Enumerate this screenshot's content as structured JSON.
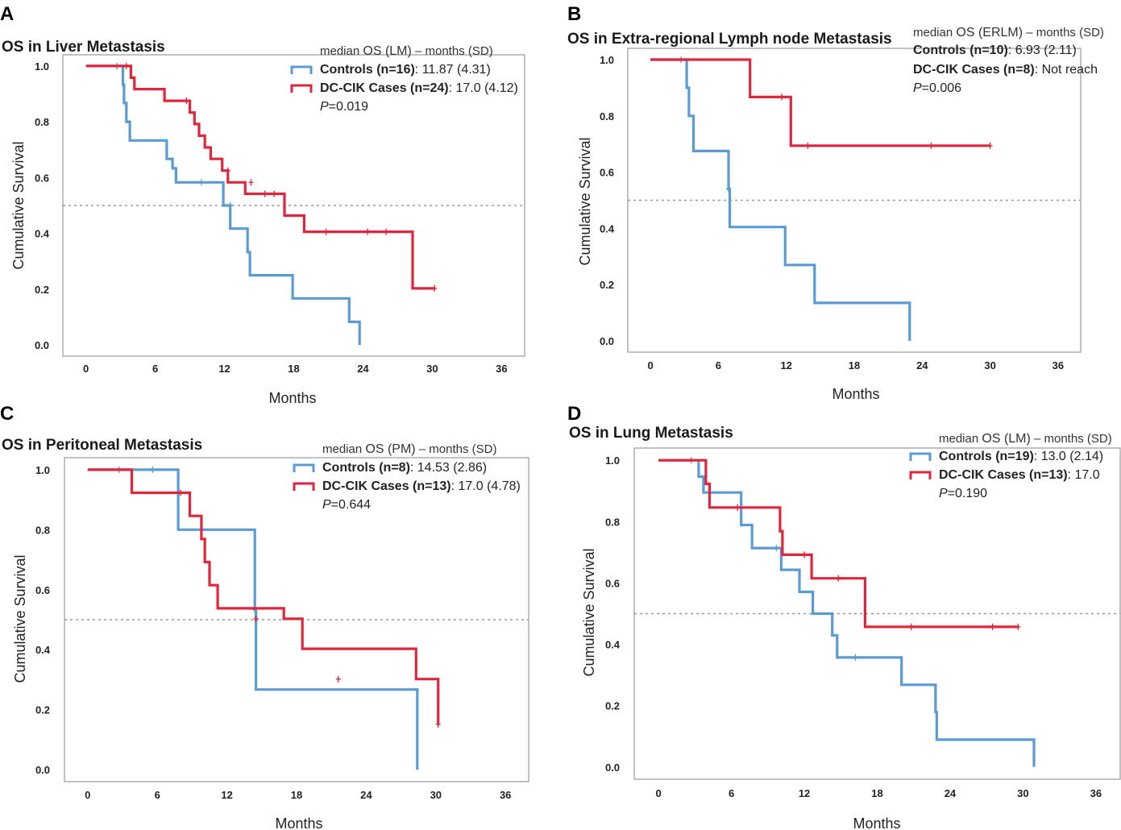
{
  "colors": {
    "controls": "#5b9bd5",
    "cases": "#e0263c"
  },
  "chart_data": [
    {
      "type": "line",
      "panel_label": "A",
      "title": "OS in Liver Metastasis",
      "xlabel": "Months",
      "ylabel": "Cumulative Survival",
      "x_ticks": [
        "0",
        "6",
        "12",
        "18",
        "24",
        "30",
        "36"
      ],
      "y_ticks": [
        "0.0",
        "0.2",
        "0.4",
        "0.6",
        "0.8",
        "1.0"
      ],
      "xlim": [
        -2,
        38
      ],
      "ylim": [
        -0.04,
        1.04
      ],
      "median_ref": 0.5,
      "legend": {
        "heading_pre": "median ",
        "heading_os": "OS (LM)",
        "heading_post": " – months (SD)",
        "controls_name": "Controls (n=16)",
        "controls_value": ": 11.87 (4.31)",
        "cases_name": "DC-CIK Cases (n=24)",
        "cases_value": ": 17.0 (4.12)",
        "p_label": "P",
        "p_value": "=0.019"
      },
      "series": [
        {
          "name": "Controls",
          "color_key": "controls",
          "x": [
            0,
            3.2,
            3.3,
            3.5,
            3.8,
            7.0,
            7.5,
            7.8,
            11.9,
            12.5,
            14.0,
            14.2,
            17.9,
            22.8,
            23.7,
            23.7
          ],
          "y": [
            1.0,
            0.933,
            0.867,
            0.8,
            0.733,
            0.667,
            0.633,
            0.583,
            0.5,
            0.417,
            0.333,
            0.25,
            0.167,
            0.083,
            0.0,
            0.0
          ],
          "censor_x": [
            2.7,
            10.0,
            12.5
          ],
          "censor_y": [
            1.0,
            0.583,
            0.5
          ]
        },
        {
          "name": "DC-CIK Cases",
          "color_key": "cases",
          "x": [
            0,
            3.9,
            4.2,
            6.8,
            9.0,
            9.4,
            9.8,
            10.3,
            10.8,
            11.8,
            12.3,
            12.4,
            13.8,
            16.0,
            17.2,
            18.9,
            28.3,
            30.2
          ],
          "y": [
            1.0,
            0.958,
            0.917,
            0.875,
            0.833,
            0.792,
            0.75,
            0.708,
            0.667,
            0.625,
            0.583,
            0.583,
            0.542,
            0.542,
            0.464,
            0.406,
            0.203,
            0.203
          ],
          "censor_x": [
            3.5,
            8.7,
            12.3,
            14.3,
            15.5,
            16.3,
            20.8,
            24.4,
            26.0,
            30.2
          ],
          "censor_y": [
            1.0,
            0.875,
            0.625,
            0.583,
            0.542,
            0.542,
            0.406,
            0.406,
            0.406,
            0.203
          ]
        }
      ]
    },
    {
      "type": "line",
      "panel_label": "B",
      "title": "OS in Extra-regional Lymph node Metastasis",
      "xlabel": "Months",
      "ylabel": "Cumulative Survival",
      "x_ticks": [
        "0",
        "6",
        "12",
        "18",
        "24",
        "30",
        "36"
      ],
      "y_ticks": [
        "0.0",
        "0.2",
        "0.4",
        "0.6",
        "0.8",
        "1.0"
      ],
      "xlim": [
        -2,
        38
      ],
      "ylim": [
        -0.04,
        1.04
      ],
      "median_ref": 0.5,
      "legend": {
        "heading_pre": "median ",
        "heading_os": "OS (ERLM)",
        "heading_post": " – months (SD)",
        "controls_name": "Controls (n=10)",
        "controls_value": ": 6.93 (2.11)",
        "cases_name": "DC-CIK Cases (n=8)",
        "cases_value": ": Not reach",
        "p_label": "P",
        "p_value": "=0.006"
      },
      "series": [
        {
          "name": "Controls",
          "color_key": "controls",
          "x": [
            0,
            3.2,
            3.4,
            3.8,
            6.9,
            7.0,
            11.9,
            14.5,
            22.9,
            22.9
          ],
          "y": [
            1.0,
            0.9,
            0.8,
            0.675,
            0.54,
            0.405,
            0.27,
            0.135,
            0.0,
            0.0
          ],
          "censor_x": [
            2.7,
            6.9
          ],
          "censor_y": [
            1.0,
            0.54
          ]
        },
        {
          "name": "DC-CIK Cases",
          "color_key": "cases",
          "x": [
            0,
            8.8,
            12.4,
            30.0
          ],
          "y": [
            1.0,
            0.867,
            0.694,
            0.694
          ],
          "censor_x": [
            11.6,
            13.9,
            24.8,
            30.0
          ],
          "censor_y": [
            0.867,
            0.694,
            0.694,
            0.694
          ]
        }
      ]
    },
    {
      "type": "line",
      "panel_label": "C",
      "title": "OS in Peritoneal Metastasis",
      "xlabel": "Months",
      "ylabel": "Cumulative Survival",
      "x_ticks": [
        "0",
        "6",
        "12",
        "18",
        "24",
        "30",
        "36"
      ],
      "y_ticks": [
        "0.0",
        "0.2",
        "0.4",
        "0.6",
        "0.8",
        "1.0"
      ],
      "xlim": [
        -2,
        38
      ],
      "ylim": [
        -0.04,
        1.04
      ],
      "median_ref": 0.5,
      "legend": {
        "heading_pre": "median ",
        "heading_os": "OS (PM)",
        "heading_post": " – months (SD)",
        "controls_name": "Controls (n=8)",
        "controls_value": ": 14.53 (2.86)",
        "cases_name": "DC-CIK Cases (n=13)",
        "cases_value": ": 17.0 (4.78)",
        "p_label": "P",
        "p_value": "=0.644"
      },
      "series": [
        {
          "name": "Controls",
          "color_key": "controls",
          "x": [
            0,
            7.8,
            14.4,
            14.5,
            28.4,
            28.4
          ],
          "y": [
            1.0,
            0.8,
            0.533,
            0.267,
            0.0,
            0.0
          ],
          "censor_x": [
            2.7,
            5.6,
            14.4
          ],
          "censor_y": [
            1.0,
            1.0,
            0.533
          ]
        },
        {
          "name": "DC-CIK Cases",
          "color_key": "cases",
          "x": [
            0,
            3.8,
            8.8,
            9.8,
            10.1,
            10.5,
            11.2,
            12.2,
            16.9,
            18.5,
            28.3,
            30.2
          ],
          "y": [
            1.0,
            0.923,
            0.846,
            0.769,
            0.692,
            0.615,
            0.538,
            0.538,
            0.503,
            0.403,
            0.302,
            0.151
          ],
          "censor_x": [
            8.0,
            14.5,
            21.6,
            30.2
          ],
          "censor_y": [
            0.923,
            0.503,
            0.302,
            0.151
          ]
        }
      ]
    },
    {
      "type": "line",
      "panel_label": "D",
      "title": "OS in Lung Metastasis",
      "xlabel": "Months",
      "ylabel": "Cumulative Survival",
      "x_ticks": [
        "0",
        "6",
        "12",
        "18",
        "24",
        "30",
        "36"
      ],
      "y_ticks": [
        "0.0",
        "0.2",
        "0.4",
        "0.6",
        "0.8",
        "1.0"
      ],
      "xlim": [
        -2,
        38
      ],
      "ylim": [
        -0.04,
        1.04
      ],
      "median_ref": 0.5,
      "legend": {
        "heading_pre": "median ",
        "heading_os": "OS (LM)",
        "heading_post": " – months (SD)",
        "controls_name": "Controls (n=19)",
        "controls_value": ": 13.0 (2.14)",
        "cases_name": "DC-CIK Cases (n=13)",
        "cases_value": ": 17.0",
        "p_label": "P",
        "p_value": "=0.190"
      },
      "series": [
        {
          "name": "Controls",
          "color_key": "controls",
          "x": [
            0,
            3.3,
            3.7,
            6.8,
            7.7,
            10.1,
            11.6,
            12.7,
            14.3,
            14.7,
            20.0,
            22.8,
            22.9,
            30.9,
            30.9
          ],
          "y": [
            1.0,
            0.947,
            0.895,
            0.789,
            0.714,
            0.643,
            0.571,
            0.5,
            0.429,
            0.357,
            0.268,
            0.179,
            0.089,
            0.0,
            0.0
          ],
          "censor_x": [
            2.7,
            9.7,
            16.2
          ],
          "censor_y": [
            1.0,
            0.714,
            0.357
          ]
        },
        {
          "name": "DC-CIK Cases",
          "color_key": "cases",
          "x": [
            0,
            3.9,
            4.2,
            10.0,
            10.2,
            12.6,
            17.0,
            29.6
          ],
          "y": [
            1.0,
            0.923,
            0.846,
            0.769,
            0.692,
            0.615,
            0.457,
            0.457
          ],
          "censor_x": [
            6.5,
            12.0,
            14.8,
            20.8,
            27.5,
            29.6
          ],
          "censor_y": [
            0.846,
            0.692,
            0.615,
            0.457,
            0.457,
            0.457
          ]
        }
      ]
    }
  ]
}
